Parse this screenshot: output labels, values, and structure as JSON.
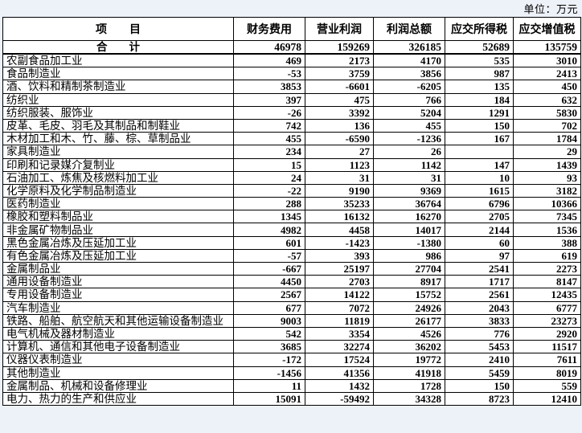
{
  "unit_label": "单位：万元",
  "table": {
    "columns": [
      "项　　目",
      "财务费用",
      "营业利润",
      "利润总额",
      "应交所得税",
      "应交增值税"
    ],
    "total": {
      "label": "合　　计",
      "values": [
        "46978",
        "159269",
        "326185",
        "52689",
        "135759"
      ]
    },
    "rows": [
      {
        "label": "农副食品加工业",
        "values": [
          "469",
          "2173",
          "4170",
          "535",
          "3010"
        ]
      },
      {
        "label": "食品制造业",
        "values": [
          "-53",
          "3759",
          "3856",
          "987",
          "2413"
        ]
      },
      {
        "label": "酒、饮料和精制茶制造业",
        "values": [
          "3853",
          "-6601",
          "-6205",
          "135",
          "450"
        ]
      },
      {
        "label": "纺织业",
        "values": [
          "397",
          "475",
          "766",
          "184",
          "632"
        ]
      },
      {
        "label": "纺织服装、服饰业",
        "values": [
          "-26",
          "3392",
          "5204",
          "1291",
          "5830"
        ]
      },
      {
        "label": "皮革、毛皮、羽毛及其制品和制鞋业",
        "values": [
          "742",
          "136",
          "455",
          "150",
          "702"
        ]
      },
      {
        "label": "木材加工和木、竹、藤、棕、草制品业",
        "values": [
          "455",
          "-6590",
          "-1236",
          "167",
          "1784"
        ]
      },
      {
        "label": "家具制造业",
        "values": [
          "234",
          "27",
          "26",
          "",
          "29"
        ]
      },
      {
        "label": "印刷和记录媒介复制业",
        "values": [
          "15",
          "1123",
          "1142",
          "147",
          "1439"
        ]
      },
      {
        "label": "石油加工、炼焦及核燃料加工业",
        "values": [
          "24",
          "31",
          "31",
          "10",
          "93"
        ]
      },
      {
        "label": "化学原料及化学制品制造业",
        "values": [
          "-22",
          "9190",
          "9369",
          "1615",
          "3182"
        ]
      },
      {
        "label": "医药制造业",
        "values": [
          "288",
          "35233",
          "36764",
          "6796",
          "10366"
        ]
      },
      {
        "label": "橡胶和塑料制品业",
        "values": [
          "1345",
          "16132",
          "16270",
          "2705",
          "7345"
        ]
      },
      {
        "label": "非金属矿物制品业",
        "values": [
          "4982",
          "4458",
          "14017",
          "2144",
          "1536"
        ]
      },
      {
        "label": "黑色金属冶炼及压延加工业",
        "values": [
          "601",
          "-1423",
          "-1380",
          "60",
          "388"
        ]
      },
      {
        "label": "有色金属冶炼及压延加工业",
        "values": [
          "-57",
          "393",
          "986",
          "97",
          "619"
        ]
      },
      {
        "label": "金属制品业",
        "values": [
          "-667",
          "25197",
          "27704",
          "2541",
          "2273"
        ]
      },
      {
        "label": "通用设备制造业",
        "values": [
          "4450",
          "2703",
          "8917",
          "1717",
          "8147"
        ]
      },
      {
        "label": "专用设备制造业",
        "values": [
          "2567",
          "14122",
          "15752",
          "2561",
          "12435"
        ]
      },
      {
        "label": "汽车制造业",
        "values": [
          "677",
          "7072",
          "24926",
          "2043",
          "6777"
        ]
      },
      {
        "label": "铁路、船舶、航空航天和其他运输设备制造业",
        "values": [
          "9003",
          "11819",
          "26177",
          "3833",
          "23273"
        ]
      },
      {
        "label": "电气机械及器材制造业",
        "values": [
          "542",
          "3354",
          "4526",
          "776",
          "2920"
        ]
      },
      {
        "label": "计算机、通信和其他电子设备制造业",
        "values": [
          "3685",
          "32274",
          "36202",
          "5453",
          "11517"
        ]
      },
      {
        "label": "仪器仪表制造业",
        "values": [
          "-172",
          "17524",
          "19772",
          "2410",
          "7611"
        ]
      },
      {
        "label": "其他制造业",
        "values": [
          "-1456",
          "41356",
          "41918",
          "5459",
          "8019"
        ]
      },
      {
        "label": "金属制品、机械和设备修理业",
        "values": [
          "11",
          "1432",
          "1728",
          "150",
          "559"
        ]
      },
      {
        "label": "电力、热力的生产和供应业",
        "values": [
          "15091",
          "-59492",
          "34328",
          "8723",
          "12410"
        ]
      }
    ]
  }
}
